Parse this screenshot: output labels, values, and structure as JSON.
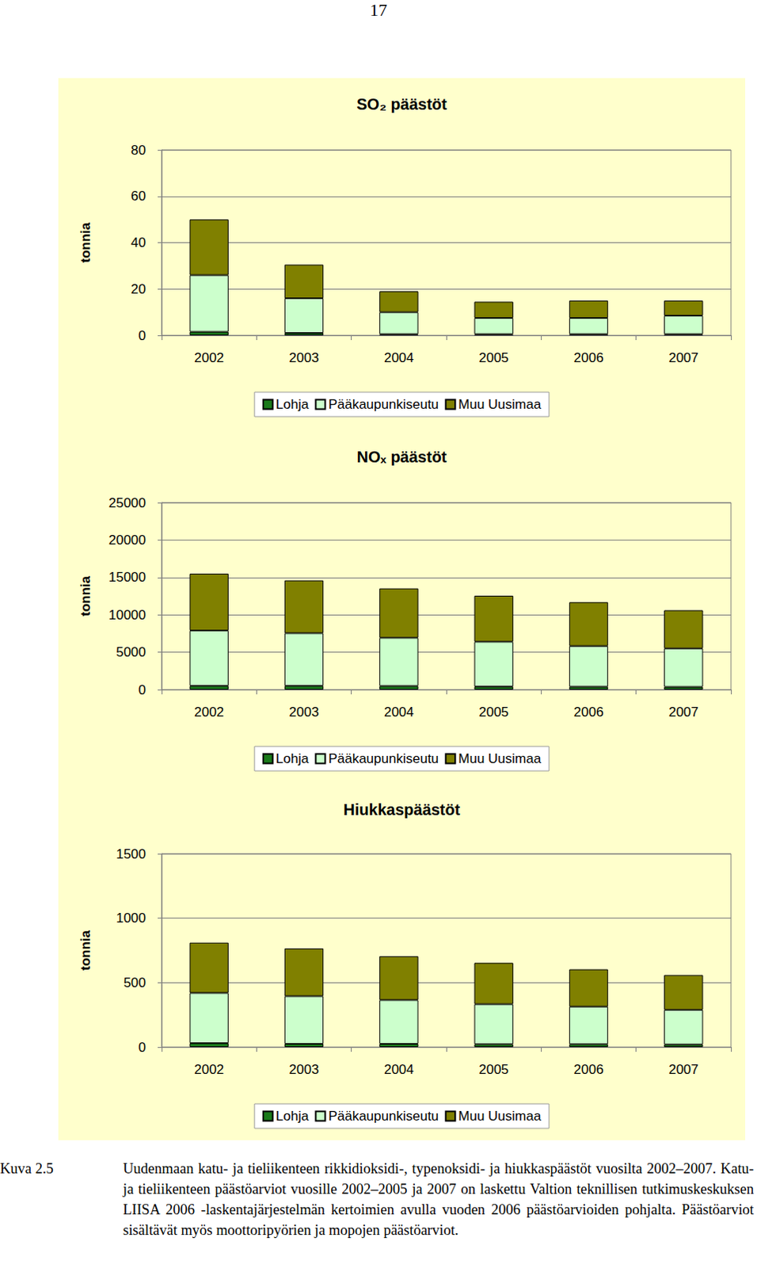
{
  "page_number": "17",
  "chart_data": [
    {
      "type": "bar",
      "title": "SO₂ päästöt",
      "y_label": "tonnia",
      "categories": [
        "2002",
        "2003",
        "2004",
        "2005",
        "2006",
        "2007"
      ],
      "series": [
        {
          "name": "Lohja",
          "color": "#1a7a1a",
          "values": [
            1.5,
            1,
            0.5,
            0.5,
            0.5,
            0.5
          ]
        },
        {
          "name": "Pääkaupunkiseutu",
          "color": "#ccffcc",
          "values": [
            24.5,
            15,
            9.5,
            7,
            7,
            8
          ]
        },
        {
          "name": "Muu Uusimaa",
          "color": "#808000",
          "values": [
            24,
            14.5,
            9,
            7,
            7.5,
            6.5
          ]
        }
      ],
      "ylim": [
        0,
        80
      ],
      "yticks": [
        0,
        20,
        40,
        60,
        80
      ],
      "stacked": true,
      "grid": true,
      "legend": "bottom"
    },
    {
      "type": "bar",
      "title": "NOₓ päästöt",
      "y_label": "tonnia",
      "categories": [
        "2002",
        "2003",
        "2004",
        "2005",
        "2006",
        "2007"
      ],
      "series": [
        {
          "name": "Lohja",
          "color": "#1a7a1a",
          "values": [
            500,
            500,
            480,
            400,
            380,
            360
          ]
        },
        {
          "name": "Pääkaupunkiseutu",
          "color": "#ccffcc",
          "values": [
            7400,
            7050,
            6450,
            6000,
            5450,
            5150
          ]
        },
        {
          "name": "Muu Uusimaa",
          "color": "#808000",
          "values": [
            7600,
            7050,
            6600,
            6150,
            5850,
            5100
          ]
        }
      ],
      "ylim": [
        0,
        25000
      ],
      "yticks": [
        0,
        5000,
        10000,
        15000,
        20000,
        25000
      ],
      "stacked": true,
      "grid": true,
      "legend": "bottom"
    },
    {
      "type": "bar",
      "title": "Hiukkaspäästöt",
      "y_label": "tonnia",
      "categories": [
        "2002",
        "2003",
        "2004",
        "2005",
        "2006",
        "2007"
      ],
      "series": [
        {
          "name": "Lohja",
          "color": "#1a7a1a",
          "values": [
            30,
            25,
            25,
            22,
            22,
            20
          ]
        },
        {
          "name": "Pääkaupunkiseutu",
          "color": "#ccffcc",
          "values": [
            390,
            370,
            340,
            311,
            292,
            269
          ]
        },
        {
          "name": "Muu Uusimaa",
          "color": "#808000",
          "values": [
            390,
            370,
            340,
            320,
            289,
            270
          ]
        }
      ],
      "ylim": [
        0,
        1500
      ],
      "yticks": [
        0,
        500,
        1000,
        1500
      ],
      "stacked": true,
      "grid": true,
      "legend": "bottom"
    }
  ],
  "caption": {
    "label": "Kuva 2.5",
    "text": "Uudenmaan katu- ja tieliikenteen rikkidioksidi-, typenoksidi- ja hiukkaspäästöt vuosilta 2002–2007. Katu- ja tieliikenteen päästöarviot vuosille 2002–2005 ja 2007 on laskettu Valtion teknillisen tutkimuskeskuksen LIISA 2006 -laskentajärjestelmän kertoimien avulla vuoden 2006 päästöarvioiden pohjalta. Päästöarviot sisältävät myös moottoripyörien ja mopojen päästöarviot."
  }
}
